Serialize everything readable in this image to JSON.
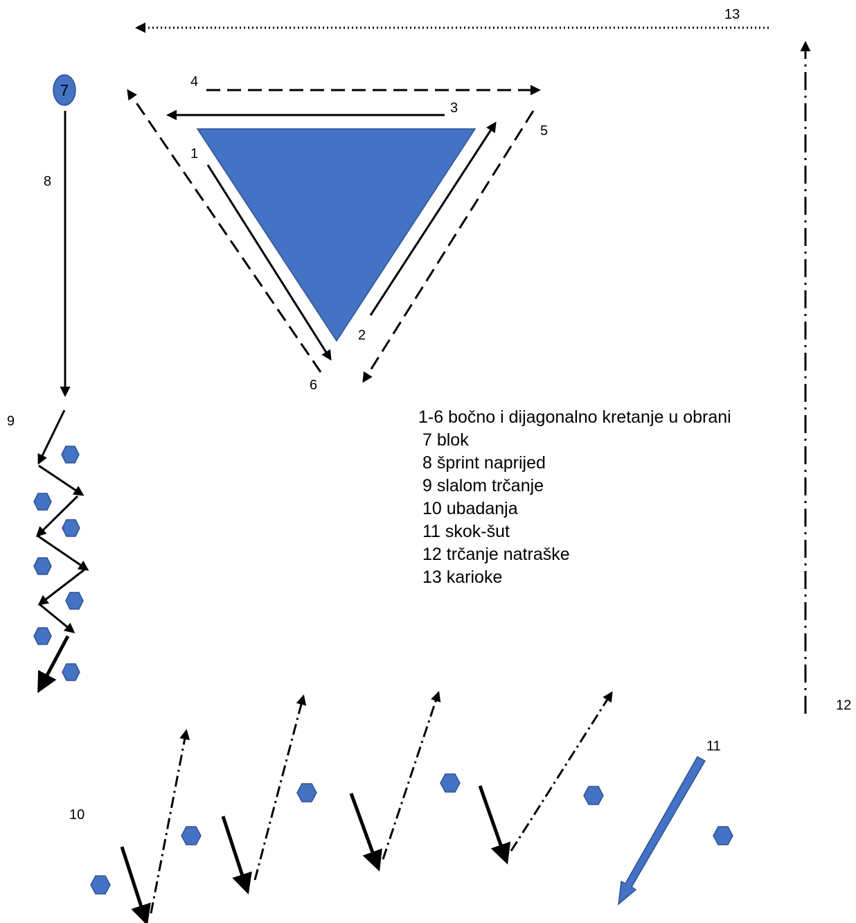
{
  "colors": {
    "shape_fill": "#4472C4",
    "shape_stroke": "#2F528F",
    "line": "#000000",
    "background": "#FFFFFF"
  },
  "node": {
    "label": "7"
  },
  "labels": {
    "l1": "1",
    "l2": "2",
    "l3": "3",
    "l4": "4",
    "l5": "5",
    "l6": "6",
    "l8": "8",
    "l9": "9",
    "l10": "10",
    "l11": "11",
    "l12": "12",
    "l13": "13"
  },
  "legend": [
    "1-6 bočno i dijagonalno kretanje u obrani",
    "7 blok",
    "8 šprint naprijed",
    "9 slalom trčanje",
    "10 ubadanja",
    "11 skok-šut",
    "12 trčanje natraške",
    "13 karioke"
  ]
}
